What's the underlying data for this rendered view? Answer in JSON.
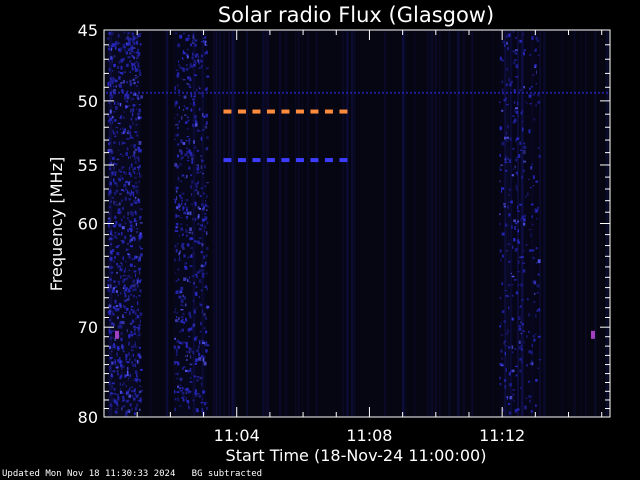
{
  "chart_data": {
    "type": "heatmap",
    "title": "Solar radio Flux (Glasgow)",
    "xlabel": "Start Time (18-Nov-24 11:00:00)",
    "ylabel": "Frequency [MHz]",
    "x_unit": "minutes",
    "xlim": [
      0,
      15.25
    ],
    "ylim": [
      45,
      80
    ],
    "y_scale": "log",
    "y_inverted": true,
    "x_ticks": [
      {
        "value": 4,
        "label": "11:04"
      },
      {
        "value": 8,
        "label": "11:08"
      },
      {
        "value": 12,
        "label": "11:12"
      }
    ],
    "y_ticks": [
      {
        "value": 45,
        "label": "45"
      },
      {
        "value": 50,
        "label": "50"
      },
      {
        "value": 55,
        "label": "55"
      },
      {
        "value": 60,
        "label": "60"
      },
      {
        "value": 70,
        "label": "70"
      },
      {
        "value": 80,
        "label": "80"
      }
    ],
    "colors": {
      "background": "#000000",
      "plot_background": "#060613",
      "axis": "#ffffff",
      "noise": "#2a2ac8",
      "band_orange": "#ff8c3c",
      "band_blue": "#3c3cff",
      "marker_purple": "#a040c0"
    },
    "features": [
      {
        "kind": "interference-band",
        "color": "band_orange",
        "freq_mhz": 50.8,
        "x_start": 3.6,
        "x_end": 7.2
      },
      {
        "kind": "interference-band",
        "color": "band_blue",
        "freq_mhz": 54.6,
        "x_start": 3.6,
        "x_end": 7.2
      },
      {
        "kind": "interference-line",
        "color": "noise",
        "freq_mhz": 49.4,
        "x_start": 0,
        "x_end": 15.25
      },
      {
        "kind": "noise-strip",
        "x_start": 0.1,
        "x_end": 1.1,
        "intensity": 0.9
      },
      {
        "kind": "noise-strip",
        "x_start": 2.1,
        "x_end": 3.1,
        "intensity": 0.6
      },
      {
        "kind": "noise-strip",
        "x_start": 11.9,
        "x_end": 13.1,
        "intensity": 0.35
      }
    ]
  },
  "footer": "Updated Mon Nov 18 11:30:33 2024   BG subtracted"
}
